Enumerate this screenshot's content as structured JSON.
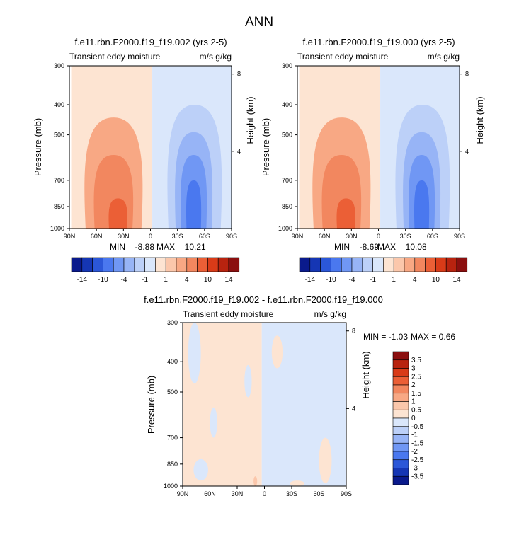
{
  "page_title": "ANN",
  "colors": {
    "blue_scale": [
      "#0a1a8c",
      "#1536b4",
      "#2b57d8",
      "#4a78ef",
      "#7097f4",
      "#97b4f6",
      "#bcd0f8",
      "#dae7fb"
    ],
    "red_scale": [
      "#fde4d2",
      "#fbc7ab",
      "#f8a884",
      "#f2875f",
      "#eb5f36",
      "#d93b18",
      "#b8230f",
      "#8b0f0f"
    ]
  },
  "chart_data": [
    {
      "type": "heatmap",
      "title": "f.e11.rbn.F2000.f19_f19.002 (yrs 2-5)",
      "left_label": "Transient eddy moisture",
      "right_label": "m/s g/kg",
      "ylabel": "Pressure (mb)",
      "ylabel_right": "Height (km)",
      "x_ticks": [
        "90N",
        "60N",
        "30N",
        "0",
        "30S",
        "60S",
        "90S"
      ],
      "x_values": [
        90,
        60,
        30,
        0,
        -30,
        -60,
        -90
      ],
      "y_ticks": [
        "300",
        "400",
        "500",
        "700",
        "850",
        "1000"
      ],
      "y_values": [
        300,
        400,
        500,
        700,
        850,
        1000
      ],
      "y_right_ticks": [
        "8",
        "4"
      ],
      "y_right_values": [
        8,
        4
      ],
      "xlim": [
        90,
        -90
      ],
      "ylim": [
        1000,
        300
      ],
      "min_text": "MIN =  -8.88",
      "max_text": "MAX =  10.21",
      "min": -8.88,
      "max": 10.21,
      "blobs": [
        {
          "level": "r1",
          "lat": [
            -2,
            88
          ],
          "p": [
            300,
            1000
          ]
        },
        {
          "level": "r2",
          "lat": [
            10,
            72
          ],
          "p": [
            440,
            1000
          ]
        },
        {
          "level": "r3",
          "lat": [
            20,
            62
          ],
          "p": [
            580,
            1000
          ]
        },
        {
          "level": "r4",
          "lat": [
            26,
            46
          ],
          "p": [
            800,
            1000
          ]
        },
        {
          "level": "b1",
          "lat": [
            -90,
            -2
          ],
          "p": [
            300,
            1000
          ]
        },
        {
          "level": "b2",
          "lat": [
            -20,
            -78
          ],
          "p": [
            400,
            1000
          ]
        },
        {
          "level": "b3",
          "lat": [
            -28,
            -68
          ],
          "p": [
            490,
            1000
          ]
        },
        {
          "level": "b4",
          "lat": [
            -34,
            -62
          ],
          "p": [
            580,
            1000
          ]
        },
        {
          "level": "b5",
          "lat": [
            -40,
            -56
          ],
          "p": [
            700,
            1000
          ]
        }
      ]
    },
    {
      "type": "heatmap",
      "title": "f.e11.rbn.F2000.f19_f19.000 (yrs 2-5)",
      "left_label": "Transient eddy moisture",
      "right_label": "m/s g/kg",
      "ylabel": "Pressure (mb)",
      "ylabel_right": "Height (km)",
      "x_ticks": [
        "90N",
        "60N",
        "30N",
        "0",
        "30S",
        "60S",
        "90S"
      ],
      "x_values": [
        90,
        60,
        30,
        0,
        -30,
        -60,
        -90
      ],
      "y_ticks": [
        "300",
        "400",
        "500",
        "700",
        "850",
        "1000"
      ],
      "y_values": [
        300,
        400,
        500,
        700,
        850,
        1000
      ],
      "y_right_ticks": [
        "8",
        "4"
      ],
      "y_right_values": [
        8,
        4
      ],
      "xlim": [
        90,
        -90
      ],
      "ylim": [
        1000,
        300
      ],
      "min_text": "MIN =  -8.69",
      "max_text": "MAX =  10.08",
      "min": -8.69,
      "max": 10.08,
      "blobs": [
        {
          "level": "r1",
          "lat": [
            -2,
            88
          ],
          "p": [
            300,
            1000
          ]
        },
        {
          "level": "r2",
          "lat": [
            10,
            72
          ],
          "p": [
            440,
            1000
          ]
        },
        {
          "level": "r3",
          "lat": [
            20,
            62
          ],
          "p": [
            580,
            1000
          ]
        },
        {
          "level": "r4",
          "lat": [
            26,
            46
          ],
          "p": [
            800,
            1000
          ]
        },
        {
          "level": "b1",
          "lat": [
            -90,
            -2
          ],
          "p": [
            300,
            1000
          ]
        },
        {
          "level": "b2",
          "lat": [
            -20,
            -78
          ],
          "p": [
            400,
            1000
          ]
        },
        {
          "level": "b3",
          "lat": [
            -28,
            -68
          ],
          "p": [
            490,
            1000
          ]
        },
        {
          "level": "b4",
          "lat": [
            -34,
            -62
          ],
          "p": [
            580,
            1000
          ]
        },
        {
          "level": "b5",
          "lat": [
            -40,
            -56
          ],
          "p": [
            700,
            1000
          ]
        }
      ]
    },
    {
      "type": "heatmap",
      "title": "f.e11.rbn.F2000.f19_f19.002 - f.e11.rbn.F2000.f19_f19.000",
      "left_label": "Transient eddy moisture",
      "right_label": "m/s g/kg",
      "ylabel": "Pressure (mb)",
      "ylabel_right": "Height (km)",
      "x_ticks": [
        "90N",
        "60N",
        "30N",
        "0",
        "30S",
        "60S",
        "90S"
      ],
      "x_values": [
        90,
        60,
        30,
        0,
        -30,
        -60,
        -90
      ],
      "y_ticks": [
        "300",
        "400",
        "500",
        "700",
        "850",
        "1000"
      ],
      "y_values": [
        300,
        400,
        500,
        700,
        850,
        1000
      ],
      "y_right_ticks": [
        "8",
        "4"
      ],
      "y_right_values": [
        8,
        4
      ],
      "xlim": [
        90,
        -90
      ],
      "ylim": [
        1000,
        300
      ],
      "min_text": "MIN =  -1.03",
      "max_text": "MAX =   0.66",
      "min": -1.03,
      "max": 0.66
    }
  ],
  "colorbar_full": {
    "labels": [
      "-14",
      "-10",
      "-4",
      "-1",
      "1",
      "4",
      "10",
      "14"
    ]
  },
  "colorbar_diff": {
    "labels": [
      "3.5",
      "3",
      "2.5",
      "2",
      "1.5",
      "1",
      "0.5",
      "0",
      "-0.5",
      "-1",
      "-1.5",
      "-2",
      "-2.5",
      "-3",
      "-3.5"
    ]
  }
}
